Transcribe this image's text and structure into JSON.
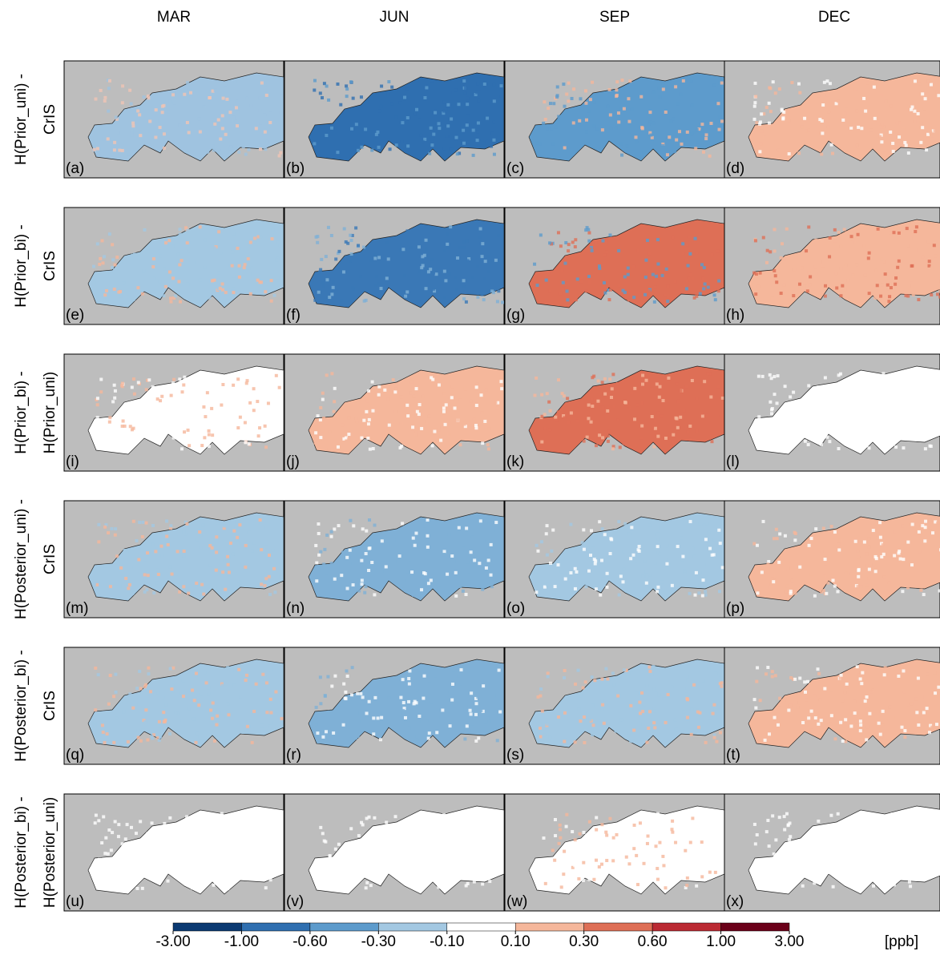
{
  "columns": [
    "MAR",
    "JUN",
    "SEP",
    "DEC"
  ],
  "rows": [
    {
      "label": [
        "H(Prior_uni) -",
        "CrIS"
      ],
      "panels": [
        "(a)",
        "(b)",
        "(c)",
        "(d)"
      ]
    },
    {
      "label": [
        "H(Prior_bi) -",
        "CrIS"
      ],
      "panels": [
        "(e)",
        "(f)",
        "(g)",
        "(h)"
      ]
    },
    {
      "label": [
        "H(Prior_bi) -",
        "H(Prior_uni)"
      ],
      "panels": [
        "(i)",
        "(j)",
        "(k)",
        "(l)"
      ]
    },
    {
      "label": [
        "H(Posterior_uni) -",
        "CrIS"
      ],
      "panels": [
        "(m)",
        "(n)",
        "(o)",
        "(p)"
      ]
    },
    {
      "label": [
        "H(Posterior_bi) -",
        "CrIS"
      ],
      "panels": [
        "(q)",
        "(r)",
        "(s)",
        "(t)"
      ]
    },
    {
      "label": [
        "H(Posterior_bi) -",
        "H(Posterior_uni)"
      ],
      "panels": [
        "(u)",
        "(v)",
        "(w)",
        "(x)"
      ]
    }
  ],
  "colorbar": {
    "ticks": [
      {
        "value": -3,
        "label": "-3.00"
      },
      {
        "value": -1,
        "label": "-1.00"
      },
      {
        "value": -0.6,
        "label": "-0.60"
      },
      {
        "value": -0.3,
        "label": "-0.30"
      },
      {
        "value": -0.1,
        "label": "-0.10"
      },
      {
        "value": 0.1,
        "label": "0.10"
      },
      {
        "value": 0.3,
        "label": "0.30"
      },
      {
        "value": 0.6,
        "label": "0.60"
      },
      {
        "value": 1,
        "label": "1.00"
      },
      {
        "value": 3,
        "label": "3.00"
      }
    ],
    "colors": [
      "#0b3a72",
      "#2f6fb0",
      "#5d9bcc",
      "#a3c8e2",
      "#ffffff",
      "#f5b79b",
      "#de6f56",
      "#bb2a33",
      "#6b0019"
    ],
    "unit": "[ppb]"
  }
}
